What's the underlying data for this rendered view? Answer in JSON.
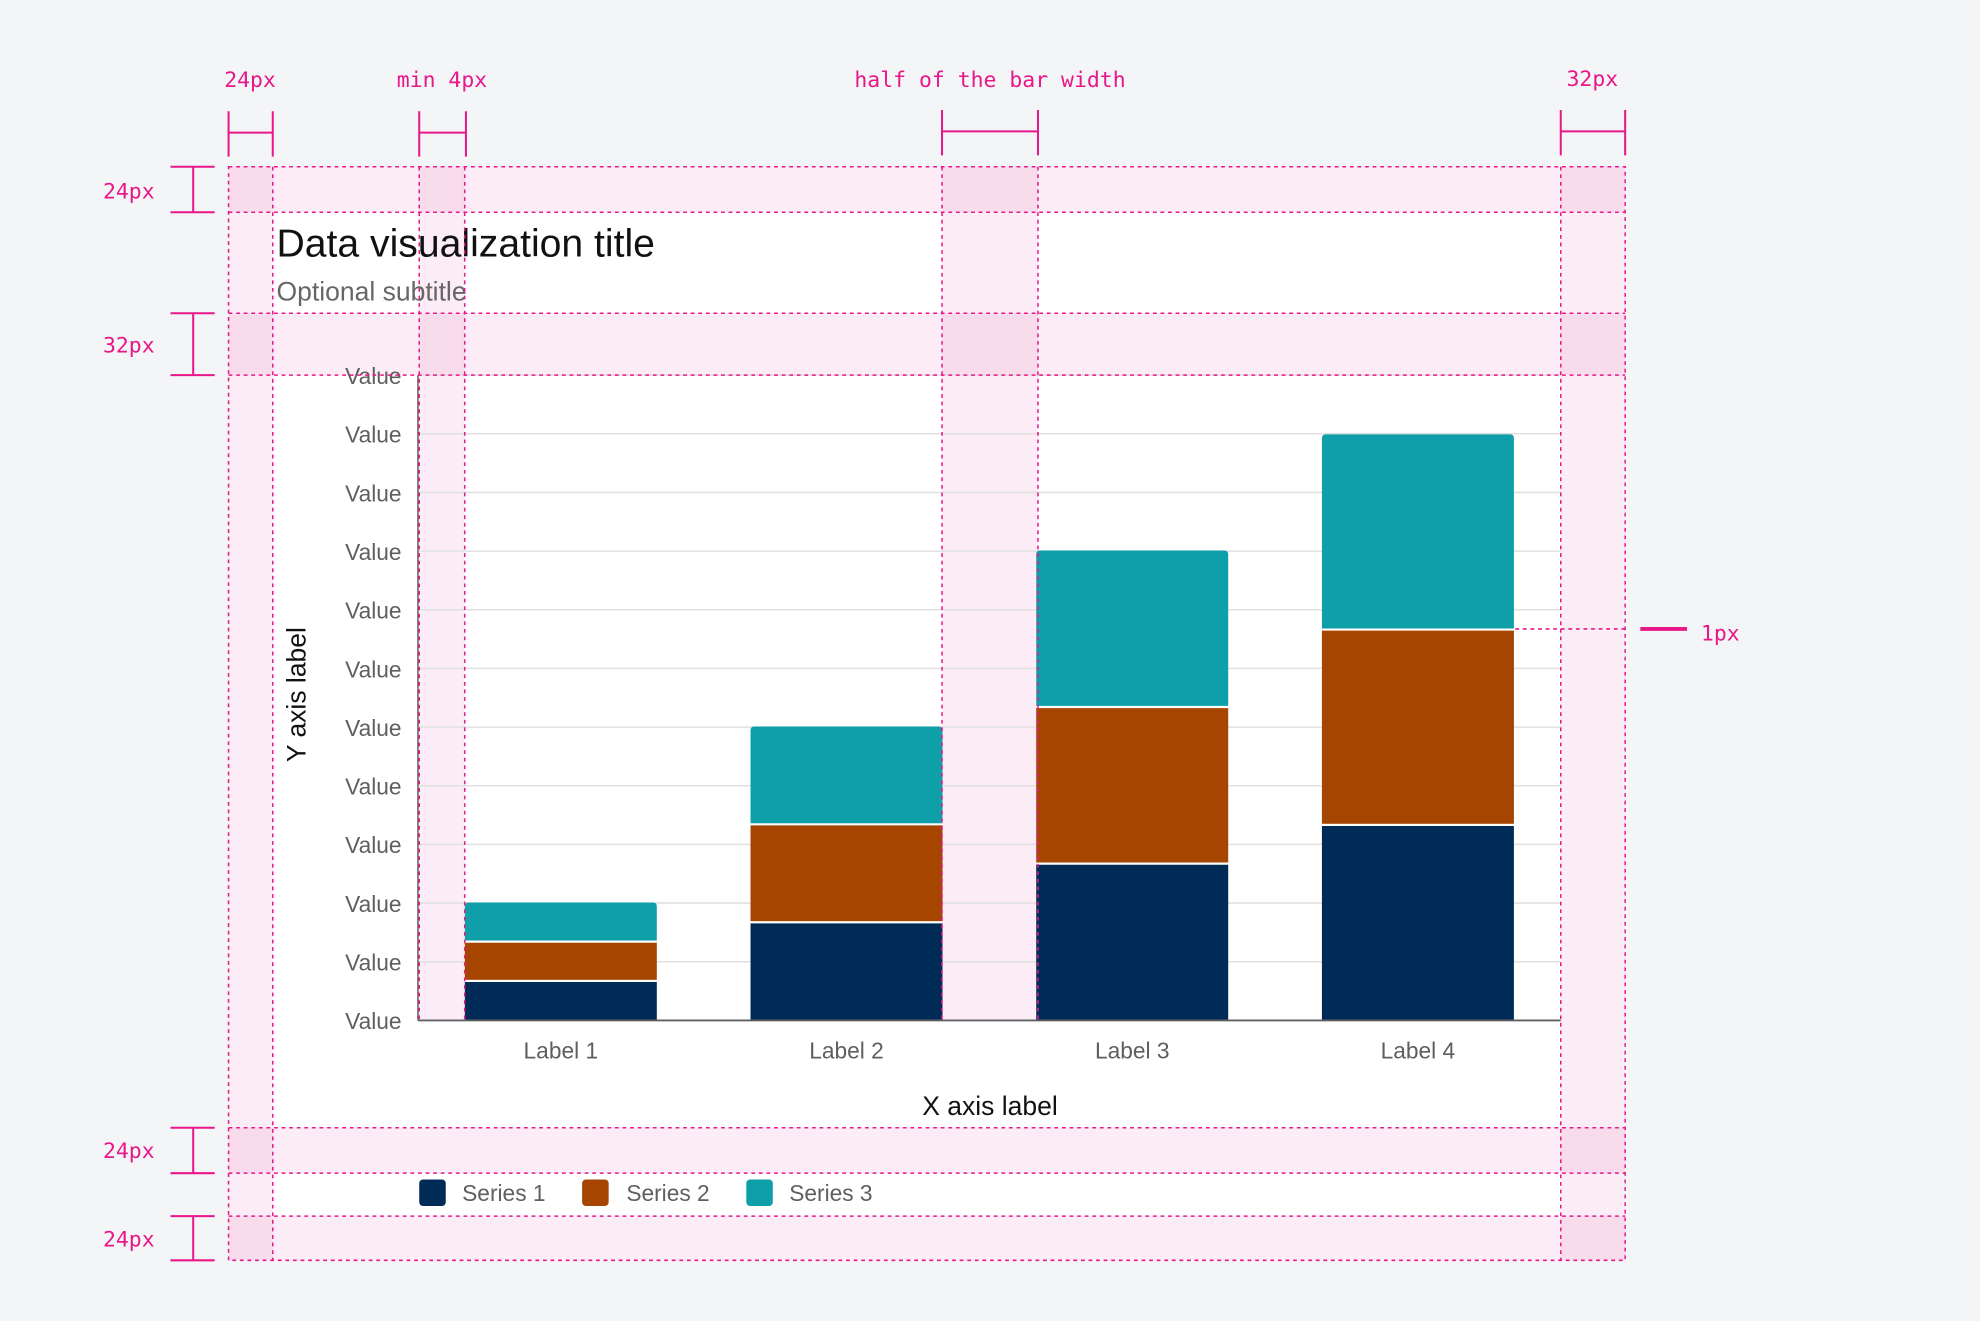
{
  "chart_data": {
    "type": "bar",
    "stacked": true,
    "title": "Data visualization title",
    "subtitle": "Optional subtitle",
    "xlabel": "X axis label",
    "ylabel": "Y axis label",
    "categories": [
      "Label 1",
      "Label 2",
      "Label 3",
      "Label 4"
    ],
    "y_tick_labels": [
      "Value",
      "Value",
      "Value",
      "Value",
      "Value",
      "Value",
      "Value",
      "Value",
      "Value",
      "Value",
      "Value",
      "Value"
    ],
    "ylim": [
      0,
      11
    ],
    "grid": true,
    "legend_position": "bottom-left",
    "series": [
      {
        "name": "Series 1",
        "color": "#012b57",
        "values": [
          0.67,
          1.67,
          2.67,
          3.33
        ]
      },
      {
        "name": "Series 2",
        "color": "#a54500",
        "values": [
          0.67,
          1.67,
          2.67,
          3.33
        ]
      },
      {
        "name": "Series 3",
        "color": "#0e9fa8",
        "values": [
          0.67,
          1.67,
          2.67,
          3.33
        ]
      }
    ]
  },
  "annotations": {
    "left_padding": "24px",
    "min_gap": "min 4px",
    "half_bar": "half of the bar width",
    "right_padding": "32px",
    "top_padding": "24px",
    "title_gap": "32px",
    "legend_gap": "24px",
    "bottom_padding": "24px",
    "divider": "1px"
  },
  "colors": {
    "redline": "#e8178a",
    "band": "#fcecf5",
    "grid": "#e0e0e0"
  }
}
